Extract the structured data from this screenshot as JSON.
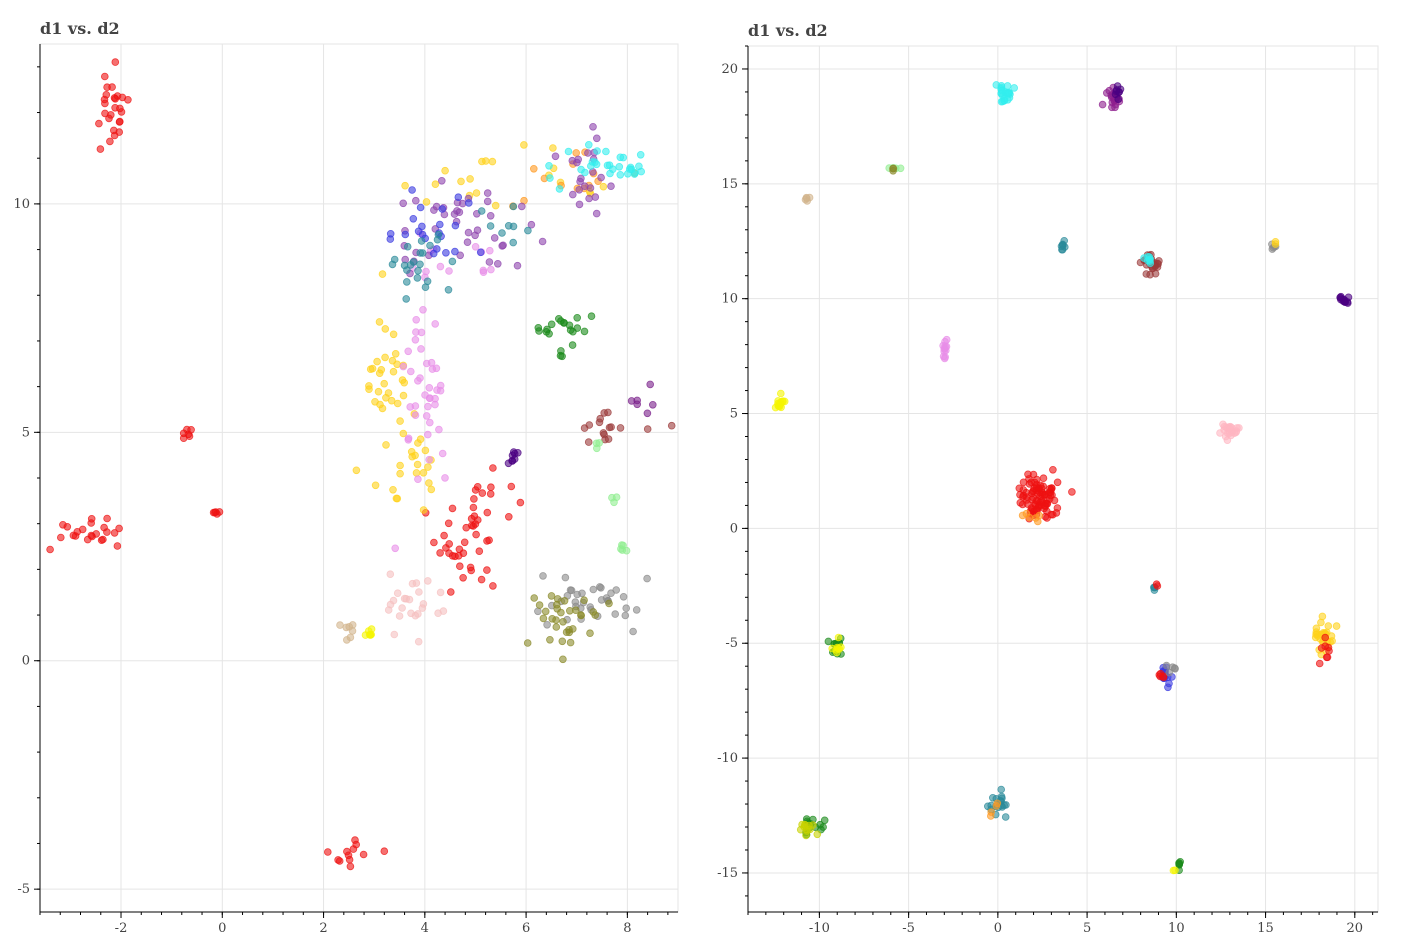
{
  "chart_data": [
    {
      "type": "scatter",
      "title": "d1 vs. d2",
      "xlabel": "",
      "ylabel": "",
      "xlim": [
        -3.6,
        9.0
      ],
      "ylim": [
        -5.5,
        13.5
      ],
      "xticks": [
        -2,
        0,
        2,
        4,
        6,
        8
      ],
      "yticks": [
        -5,
        0,
        5,
        10
      ],
      "grid": true,
      "clusters": [
        {
          "color": "#ee1111",
          "cx": -2.2,
          "cy": 12.0,
          "sx": 0.18,
          "sy": 0.45,
          "n": 26
        },
        {
          "color": "#ee1111",
          "cx": -0.7,
          "cy": 4.95,
          "sx": 0.07,
          "sy": 0.08,
          "n": 6
        },
        {
          "color": "#ee1111",
          "cx": -0.1,
          "cy": 3.25,
          "sx": 0.05,
          "sy": 0.04,
          "n": 5
        },
        {
          "color": "#ee1111",
          "cx": -2.6,
          "cy": 2.85,
          "sx": 0.4,
          "sy": 0.15,
          "n": 22
        },
        {
          "color": "#ee1111",
          "cx": 2.5,
          "cy": -4.2,
          "sx": 0.3,
          "sy": 0.2,
          "n": 12
        },
        {
          "color": "#ee1111",
          "cx": 5.1,
          "cy": 3.1,
          "sx": 0.45,
          "sy": 0.55,
          "n": 32
        },
        {
          "color": "#ee1111",
          "cx": 4.7,
          "cy": 2.2,
          "sx": 0.2,
          "sy": 0.35,
          "n": 14
        },
        {
          "color": "#ffd21a",
          "cx": 3.3,
          "cy": 6.0,
          "sx": 0.25,
          "sy": 0.9,
          "n": 40
        },
        {
          "color": "#ffd21a",
          "cx": 3.8,
          "cy": 4.4,
          "sx": 0.2,
          "sy": 0.35,
          "n": 14
        },
        {
          "color": "#ffd21a",
          "cx": 5.6,
          "cy": 10.4,
          "sx": 0.9,
          "sy": 0.35,
          "n": 20
        },
        {
          "color": "#ff9922",
          "cx": 6.6,
          "cy": 10.5,
          "sx": 0.7,
          "sy": 0.3,
          "n": 14
        },
        {
          "color": "#e88ee8",
          "cx": 4.0,
          "cy": 5.9,
          "sx": 0.3,
          "sy": 1.2,
          "n": 42
        },
        {
          "color": "#e88ee8",
          "cx": 4.6,
          "cy": 8.5,
          "sx": 0.5,
          "sy": 0.4,
          "n": 12
        },
        {
          "color": "#8e44ad",
          "cx": 4.8,
          "cy": 9.4,
          "sx": 0.7,
          "sy": 0.5,
          "n": 40
        },
        {
          "color": "#8e44ad",
          "cx": 7.3,
          "cy": 10.8,
          "sx": 0.45,
          "sy": 0.5,
          "n": 22
        },
        {
          "color": "#3b3be0",
          "cx": 4.2,
          "cy": 9.5,
          "sx": 0.6,
          "sy": 0.4,
          "n": 22
        },
        {
          "color": "#2a8a9a",
          "cx": 3.9,
          "cy": 8.7,
          "sx": 0.3,
          "sy": 0.3,
          "n": 22
        },
        {
          "color": "#2a8a9a",
          "cx": 5.6,
          "cy": 9.4,
          "sx": 0.3,
          "sy": 0.3,
          "n": 8
        },
        {
          "color": "#33eeee",
          "cx": 7.4,
          "cy": 10.9,
          "sx": 0.4,
          "sy": 0.25,
          "n": 22
        },
        {
          "color": "#33eeee",
          "cx": 8.1,
          "cy": 10.75,
          "sx": 0.1,
          "sy": 0.08,
          "n": 8
        },
        {
          "color": "#1a8a1a",
          "cx": 6.8,
          "cy": 7.3,
          "sx": 0.25,
          "sy": 0.15,
          "n": 18
        },
        {
          "color": "#1a8a1a",
          "cx": 6.7,
          "cy": 6.8,
          "sx": 0.05,
          "sy": 0.1,
          "n": 3
        },
        {
          "color": "#9b3a3a",
          "cx": 7.6,
          "cy": 5.1,
          "sx": 0.5,
          "sy": 0.15,
          "n": 16
        },
        {
          "color": "#7a1f8a",
          "cx": 8.3,
          "cy": 5.7,
          "sx": 0.1,
          "sy": 0.2,
          "n": 6
        },
        {
          "color": "#4b0082",
          "cx": 5.75,
          "cy": 4.45,
          "sx": 0.06,
          "sy": 0.08,
          "n": 8
        },
        {
          "color": "#8a8a8a",
          "cx": 7.3,
          "cy": 1.3,
          "sx": 0.5,
          "sy": 0.3,
          "n": 36
        },
        {
          "color": "#8a8a2a",
          "cx": 6.7,
          "cy": 0.9,
          "sx": 0.4,
          "sy": 0.4,
          "n": 32
        },
        {
          "color": "#f5c0c0",
          "cx": 3.7,
          "cy": 1.3,
          "sx": 0.35,
          "sy": 0.3,
          "n": 24
        },
        {
          "color": "#d2b48c",
          "cx": 2.5,
          "cy": 0.7,
          "sx": 0.1,
          "sy": 0.25,
          "n": 7
        },
        {
          "color": "#f5f500",
          "cx": 2.8,
          "cy": 0.6,
          "sx": 0.15,
          "sy": 0.05,
          "n": 7
        },
        {
          "color": "#90ee90",
          "cx": 7.9,
          "cy": 2.45,
          "sx": 0.04,
          "sy": 0.1,
          "n": 5
        },
        {
          "color": "#90ee90",
          "cx": 7.75,
          "cy": 3.5,
          "sx": 0.04,
          "sy": 0.04,
          "n": 3
        },
        {
          "color": "#90ee90",
          "cx": 7.4,
          "cy": 4.7,
          "sx": 0.05,
          "sy": 0.05,
          "n": 3
        }
      ]
    },
    {
      "type": "scatter",
      "title": "d1 vs. d2",
      "xlabel": "",
      "ylabel": "",
      "xlim": [
        -14.0,
        21.3
      ],
      "ylim": [
        -16.7,
        21.0
      ],
      "xticks": [
        -10,
        -5,
        0,
        5,
        10,
        15,
        20
      ],
      "yticks": [
        -15,
        -10,
        -5,
        0,
        5,
        10,
        15,
        20
      ],
      "grid": true,
      "clusters": [
        {
          "color": "#33eeee",
          "cx": 0.4,
          "cy": 19.0,
          "sx": 0.2,
          "sy": 0.25,
          "n": 24
        },
        {
          "color": "#8e1f8e",
          "cx": 6.5,
          "cy": 18.7,
          "sx": 0.25,
          "sy": 0.3,
          "n": 22
        },
        {
          "color": "#4b0082",
          "cx": 6.7,
          "cy": 19.0,
          "sx": 0.1,
          "sy": 0.2,
          "n": 8
        },
        {
          "color": "#90ee90",
          "cx": -6.0,
          "cy": 15.7,
          "sx": 0.2,
          "sy": 0.03,
          "n": 4
        },
        {
          "color": "#8a8a2a",
          "cx": -5.8,
          "cy": 15.6,
          "sx": 0.05,
          "sy": 0.05,
          "n": 3
        },
        {
          "color": "#d2b48c",
          "cx": -10.7,
          "cy": 14.4,
          "sx": 0.1,
          "sy": 0.08,
          "n": 5
        },
        {
          "color": "#2a8a9a",
          "cx": 3.6,
          "cy": 12.3,
          "sx": 0.1,
          "sy": 0.12,
          "n": 8
        },
        {
          "color": "#9b3a3a",
          "cx": 8.6,
          "cy": 11.5,
          "sx": 0.25,
          "sy": 0.25,
          "n": 26
        },
        {
          "color": "#33eeee",
          "cx": 8.4,
          "cy": 11.8,
          "sx": 0.15,
          "sy": 0.1,
          "n": 8
        },
        {
          "color": "#8a8a8a",
          "cx": 15.4,
          "cy": 12.3,
          "sx": 0.1,
          "sy": 0.08,
          "n": 5
        },
        {
          "color": "#ffd21a",
          "cx": 15.5,
          "cy": 12.4,
          "sx": 0.05,
          "sy": 0.05,
          "n": 2
        },
        {
          "color": "#4b0082",
          "cx": 19.4,
          "cy": 9.95,
          "sx": 0.15,
          "sy": 0.1,
          "n": 14
        },
        {
          "color": "#e88ee8",
          "cx": -3.0,
          "cy": 7.9,
          "sx": 0.1,
          "sy": 0.25,
          "n": 12
        },
        {
          "color": "#f5f500",
          "cx": -12.2,
          "cy": 5.5,
          "sx": 0.12,
          "sy": 0.15,
          "n": 14
        },
        {
          "color": "#ffb6c1",
          "cx": 13.0,
          "cy": 4.3,
          "sx": 0.3,
          "sy": 0.2,
          "n": 24
        },
        {
          "color": "#ee1111",
          "cx": 2.3,
          "cy": 1.3,
          "sx": 0.55,
          "sy": 0.5,
          "n": 90
        },
        {
          "color": "#ff9922",
          "cx": 1.9,
          "cy": 0.7,
          "sx": 0.3,
          "sy": 0.3,
          "n": 6
        },
        {
          "color": "#2a8a9a",
          "cx": 8.8,
          "cy": -2.6,
          "sx": 0.05,
          "sy": 0.08,
          "n": 4
        },
        {
          "color": "#ee1111",
          "cx": 8.9,
          "cy": -2.5,
          "sx": 0.03,
          "sy": 0.05,
          "n": 2
        },
        {
          "color": "#1a8a1a",
          "cx": -9.0,
          "cy": -5.1,
          "sx": 0.2,
          "sy": 0.25,
          "n": 12
        },
        {
          "color": "#f5f500",
          "cx": -9.0,
          "cy": -5.2,
          "sx": 0.15,
          "sy": 0.2,
          "n": 8
        },
        {
          "color": "#ffd21a",
          "cx": 18.3,
          "cy": -4.8,
          "sx": 0.25,
          "sy": 0.35,
          "n": 28
        },
        {
          "color": "#ee1111",
          "cx": 18.4,
          "cy": -5.3,
          "sx": 0.2,
          "sy": 0.3,
          "n": 8
        },
        {
          "color": "#3b3be0",
          "cx": 9.4,
          "cy": -6.5,
          "sx": 0.2,
          "sy": 0.25,
          "n": 16
        },
        {
          "color": "#ee1111",
          "cx": 9.2,
          "cy": -6.5,
          "sx": 0.1,
          "sy": 0.15,
          "n": 5
        },
        {
          "color": "#8a8a8a",
          "cx": 9.7,
          "cy": -6.1,
          "sx": 0.15,
          "sy": 0.1,
          "n": 5
        },
        {
          "color": "#1a8a1a",
          "cx": -10.4,
          "cy": -13.0,
          "sx": 0.3,
          "sy": 0.2,
          "n": 16
        },
        {
          "color": "#c8d200",
          "cx": -10.6,
          "cy": -13.0,
          "sx": 0.3,
          "sy": 0.2,
          "n": 12
        },
        {
          "color": "#2a8a9a",
          "cx": 0.0,
          "cy": -12.0,
          "sx": 0.2,
          "sy": 0.2,
          "n": 18
        },
        {
          "color": "#ff9922",
          "cx": -0.2,
          "cy": -12.2,
          "sx": 0.1,
          "sy": 0.15,
          "n": 4
        },
        {
          "color": "#1a8a1a",
          "cx": 10.2,
          "cy": -14.6,
          "sx": 0.1,
          "sy": 0.12,
          "n": 6
        },
        {
          "color": "#f5f500",
          "cx": 9.9,
          "cy": -14.9,
          "sx": 0.05,
          "sy": 0.06,
          "n": 2
        }
      ]
    }
  ]
}
